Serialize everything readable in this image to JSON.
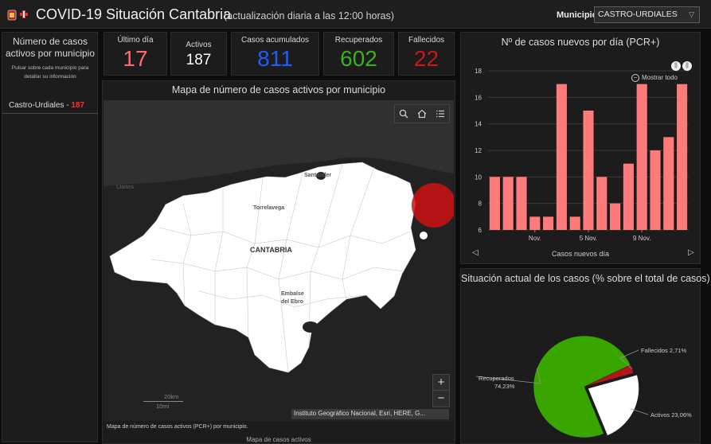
{
  "header": {
    "title": "COVID-19 Situación Cantabria",
    "subtitle": "(actualización diaria a las 12:00 horas)",
    "municipio_label": "Municipio",
    "municipio_value": "CASTRO-URDIALES"
  },
  "left_panel": {
    "title": "Número de casos activos por municipio",
    "subtitle": "Pulsar sobre cada municipio para detallar su información",
    "items": [
      {
        "name": "Castro-Urdiales",
        "separator": " - ",
        "value": "187"
      }
    ]
  },
  "stats": {
    "ultimo_dia": {
      "label": "Último día",
      "value": "17",
      "color": "#ff6b6b"
    },
    "activos": {
      "label": "Activos",
      "value": "187",
      "color": "#ffffff"
    },
    "acumulados": {
      "label": "Casos acumulados",
      "value": "811",
      "color": "#1f5cff"
    },
    "recuperados": {
      "label": "Recuperados",
      "value": "602",
      "color": "#3cb01c"
    },
    "fallecidos": {
      "label": "Fallecidos",
      "value": "22",
      "color": "#c8161d"
    }
  },
  "map": {
    "title": "Mapa de número de casos activos por municipio",
    "labels": {
      "llanes": "Llanes",
      "santander": "Santander",
      "torrelavega": "Torrelavega",
      "cantabria": "CANTABRIA",
      "embalse": "Embalse del Ebro"
    },
    "scale_km": "20km",
    "scale_mi": "10mi",
    "zoom_in": "+",
    "zoom_out": "−",
    "attribution": "Instituto Geográfico Nacional, Esri, HERE, G...",
    "caption": "Mapa de número de casos activos (PCR+) por municipio.",
    "nav_label": "Mapa de casos activos",
    "marker_color": "#cc1111"
  },
  "bar_chart": {
    "title": "Nº de casos nuevos por día (PCR+)",
    "footer": "Casos nuevos día",
    "show_all": "Mostrar todo"
  },
  "pie_chart": {
    "title": "Situación actual de los casos (% sobre el total de casos)"
  },
  "chart_data": [
    {
      "type": "bar",
      "title": "Nº de casos nuevos por día (PCR+)",
      "xlabel": "Casos nuevos día",
      "ylabel": "",
      "ylim": [
        6,
        18
      ],
      "yticks": [
        "6",
        "8",
        "10",
        "12",
        "14",
        "16",
        "18"
      ],
      "xtick_labels": [
        {
          "label": "Nov.",
          "index": 3
        },
        {
          "label": "5 Nov.",
          "index": 7
        },
        {
          "label": "9 Nov.",
          "index": 11
        }
      ],
      "values": [
        10,
        10,
        10,
        7,
        7,
        17,
        7,
        15,
        10,
        8,
        11,
        17,
        12,
        13,
        17
      ],
      "color": "#ff7b7b",
      "grid": true
    },
    {
      "type": "pie",
      "title": "Situación actual de los casos (% sobre el total de casos)",
      "slices": [
        {
          "label": "Recuperados",
          "value": 74.23,
          "display": "74,23%",
          "color": "#39a600"
        },
        {
          "label": "Activos",
          "value": 23.06,
          "display": "23,06%",
          "color": "#ffffff"
        },
        {
          "label": "Fallecidos",
          "value": 2.71,
          "display": "2,71%",
          "color": "#b4151a"
        }
      ]
    }
  ]
}
